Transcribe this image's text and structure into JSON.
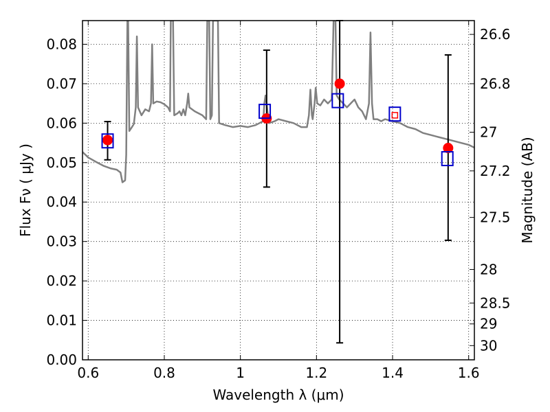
{
  "chart_data": {
    "type": "scatter",
    "xlabel": "Wavelength  λ (μm)",
    "ylabel": "Flux  Fν  ( μJy )",
    "ylabel_right": "Magnitude (AB)",
    "xlim": [
      0.585,
      1.615
    ],
    "ylim": [
      0.0,
      0.086
    ],
    "x_ticks": [
      0.6,
      0.8,
      1.0,
      1.2,
      1.4,
      1.6
    ],
    "x_tick_labels": [
      "0.6",
      "0.8",
      "1",
      "1.2",
      "1.4",
      "1.6"
    ],
    "y_ticks": [
      0.0,
      0.01,
      0.02,
      0.03,
      0.04,
      0.05,
      0.06,
      0.07,
      0.08
    ],
    "y_tick_labels": [
      "0.00",
      "0.01",
      "0.02",
      "0.03",
      "0.04",
      "0.05",
      "0.06",
      "0.07",
      "0.08"
    ],
    "mag_ticks": [
      {
        "label": "26.6",
        "flux": 0.0825
      },
      {
        "label": "26.8",
        "flux": 0.07
      },
      {
        "label": "27",
        "flux": 0.0577
      },
      {
        "label": "27.2",
        "flux": 0.0479
      },
      {
        "label": "27.5",
        "flux": 0.0361
      },
      {
        "label": "28",
        "flux": 0.0229
      },
      {
        "label": "28.5",
        "flux": 0.0144
      },
      {
        "label": "29",
        "flux": 0.0091
      },
      {
        "label": "30",
        "flux": 0.0036
      }
    ],
    "grid": true,
    "grid_style": "dotted",
    "series": [
      {
        "kind": "model_spectrum",
        "color": "#808080",
        "points": [
          [
            0.585,
            0.0527
          ],
          [
            0.6,
            0.0513
          ],
          [
            0.62,
            0.0502
          ],
          [
            0.64,
            0.0492
          ],
          [
            0.66,
            0.0485
          ],
          [
            0.675,
            0.0482
          ],
          [
            0.685,
            0.0475
          ],
          [
            0.69,
            0.045
          ],
          [
            0.697,
            0.0455
          ],
          [
            0.7,
            0.052
          ],
          [
            0.703,
            0.086
          ],
          [
            0.705,
            0.086
          ],
          [
            0.708,
            0.058
          ],
          [
            0.715,
            0.059
          ],
          [
            0.72,
            0.0598
          ],
          [
            0.725,
            0.064
          ],
          [
            0.728,
            0.082
          ],
          [
            0.731,
            0.064
          ],
          [
            0.74,
            0.062
          ],
          [
            0.75,
            0.0635
          ],
          [
            0.76,
            0.063
          ],
          [
            0.765,
            0.065
          ],
          [
            0.768,
            0.08
          ],
          [
            0.771,
            0.065
          ],
          [
            0.78,
            0.0655
          ],
          [
            0.79,
            0.0653
          ],
          [
            0.8,
            0.0648
          ],
          [
            0.81,
            0.064
          ],
          [
            0.815,
            0.063
          ],
          [
            0.817,
            0.086
          ],
          [
            0.823,
            0.086
          ],
          [
            0.826,
            0.062
          ],
          [
            0.835,
            0.0625
          ],
          [
            0.84,
            0.063
          ],
          [
            0.845,
            0.062
          ],
          [
            0.85,
            0.0635
          ],
          [
            0.855,
            0.062
          ],
          [
            0.86,
            0.065
          ],
          [
            0.863,
            0.0675
          ],
          [
            0.866,
            0.064
          ],
          [
            0.88,
            0.063
          ],
          [
            0.9,
            0.062
          ],
          [
            0.91,
            0.061
          ],
          [
            0.913,
            0.086
          ],
          [
            0.918,
            0.086
          ],
          [
            0.921,
            0.061
          ],
          [
            0.925,
            0.062
          ],
          [
            0.928,
            0.086
          ],
          [
            0.933,
            0.086
          ],
          [
            0.936,
            0.086
          ],
          [
            0.941,
            0.086
          ],
          [
            0.944,
            0.06
          ],
          [
            0.96,
            0.0595
          ],
          [
            0.98,
            0.059
          ],
          [
            1.0,
            0.0593
          ],
          [
            1.02,
            0.059
          ],
          [
            1.04,
            0.0595
          ],
          [
            1.05,
            0.06
          ],
          [
            1.06,
            0.0605
          ],
          [
            1.063,
            0.065
          ],
          [
            1.066,
            0.067
          ],
          [
            1.07,
            0.064
          ],
          [
            1.075,
            0.06
          ],
          [
            1.09,
            0.0605
          ],
          [
            1.1,
            0.061
          ],
          [
            1.12,
            0.0605
          ],
          [
            1.14,
            0.06
          ],
          [
            1.16,
            0.059
          ],
          [
            1.175,
            0.059
          ],
          [
            1.18,
            0.062
          ],
          [
            1.184,
            0.0685
          ],
          [
            1.188,
            0.062
          ],
          [
            1.19,
            0.061
          ],
          [
            1.195,
            0.065
          ],
          [
            1.198,
            0.069
          ],
          [
            1.202,
            0.065
          ],
          [
            1.21,
            0.0645
          ],
          [
            1.22,
            0.066
          ],
          [
            1.23,
            0.065
          ],
          [
            1.24,
            0.066
          ],
          [
            1.245,
            0.086
          ],
          [
            1.25,
            0.086
          ],
          [
            1.253,
            0.067
          ],
          [
            1.26,
            0.066
          ],
          [
            1.27,
            0.065
          ],
          [
            1.28,
            0.064
          ],
          [
            1.29,
            0.065
          ],
          [
            1.3,
            0.066
          ],
          [
            1.31,
            0.064
          ],
          [
            1.32,
            0.063
          ],
          [
            1.33,
            0.061
          ],
          [
            1.338,
            0.065
          ],
          [
            1.342,
            0.083
          ],
          [
            1.346,
            0.065
          ],
          [
            1.35,
            0.061
          ],
          [
            1.36,
            0.061
          ],
          [
            1.37,
            0.0605
          ],
          [
            1.38,
            0.061
          ],
          [
            1.4,
            0.0605
          ],
          [
            1.42,
            0.06
          ],
          [
            1.44,
            0.059
          ],
          [
            1.46,
            0.0585
          ],
          [
            1.48,
            0.0575
          ],
          [
            1.5,
            0.057
          ],
          [
            1.52,
            0.0565
          ],
          [
            1.54,
            0.056
          ],
          [
            1.56,
            0.0555
          ],
          [
            1.58,
            0.055
          ],
          [
            1.6,
            0.0545
          ],
          [
            1.615,
            0.0538
          ]
        ]
      },
      {
        "kind": "model_photometry",
        "marker": "open-square",
        "color": "#0000cc",
        "points": [
          [
            0.651,
            0.0555
          ],
          [
            1.064,
            0.063
          ],
          [
            1.256,
            0.0657
          ],
          [
            1.406,
            0.0623
          ],
          [
            1.544,
            0.051
          ]
        ]
      },
      {
        "kind": "observed_photometry",
        "marker": "filled-circle",
        "color": "#ff0000",
        "points": [
          {
            "x": 0.651,
            "y": 0.0557,
            "yerr_low": 0.0507,
            "yerr_high": 0.0604
          },
          {
            "x": 1.069,
            "y": 0.0612,
            "yerr_low": 0.0438,
            "yerr_high": 0.0785
          },
          {
            "x": 1.261,
            "y": 0.07,
            "yerr_low": 0.0043,
            "yerr_high": 0.086
          },
          {
            "x": 1.406,
            "y": 0.062,
            "yerr_low": null,
            "yerr_high": null
          },
          {
            "x": 1.546,
            "y": 0.0537,
            "yerr_low": 0.0303,
            "yerr_high": 0.0773
          }
        ]
      }
    ]
  }
}
